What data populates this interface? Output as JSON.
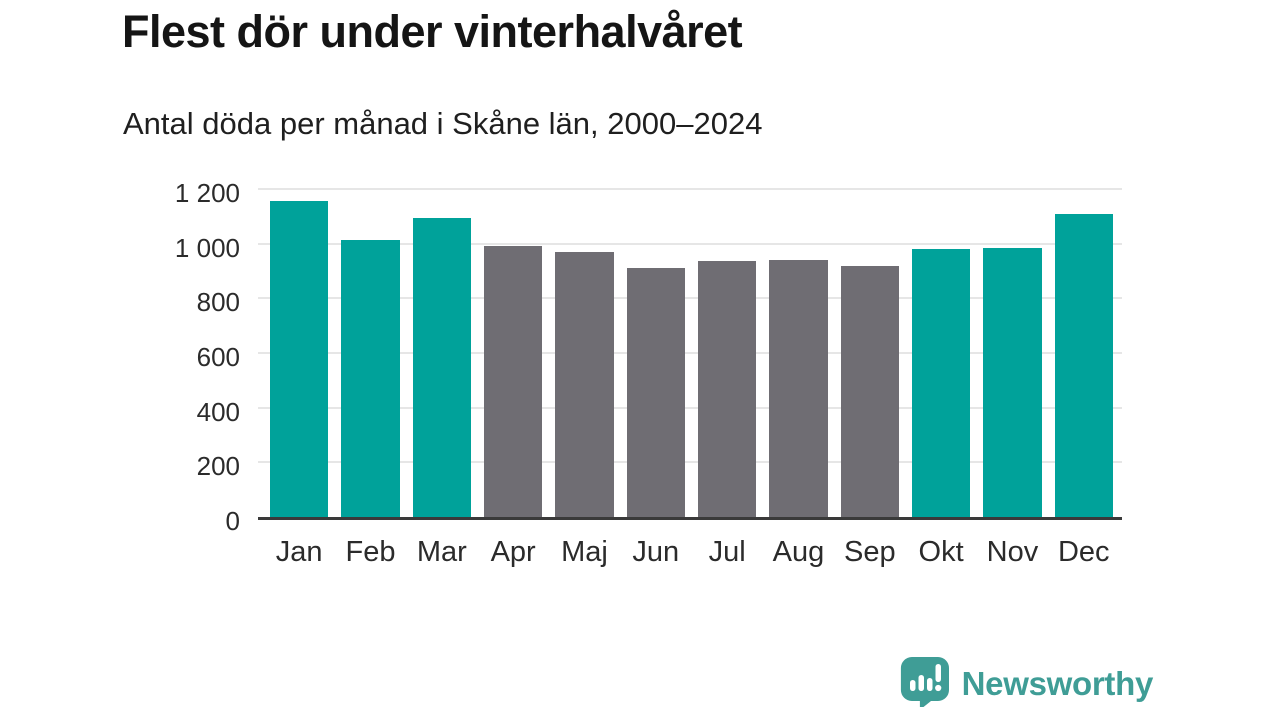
{
  "title": "Flest dör under vinterhalvåret",
  "subtitle": "Antal döda per månad i Skåne län, 2000–2024",
  "chart_data": {
    "type": "bar",
    "categories": [
      "Jan",
      "Feb",
      "Mar",
      "Apr",
      "Maj",
      "Jun",
      "Jul",
      "Aug",
      "Sep",
      "Okt",
      "Nov",
      "Dec"
    ],
    "values": [
      1155,
      1015,
      1095,
      990,
      970,
      910,
      935,
      940,
      920,
      980,
      985,
      1110
    ],
    "bar_colors": [
      "teal",
      "teal",
      "teal",
      "gray",
      "gray",
      "gray",
      "gray",
      "gray",
      "gray",
      "teal",
      "teal",
      "teal"
    ],
    "title": "Flest dör under vinterhalvåret",
    "subtitle": "Antal döda per månad i Skåne län, 2000–2024",
    "xlabel": "",
    "ylabel": "",
    "ylim": [
      0,
      1200
    ],
    "yticks": [
      0,
      200,
      400,
      600,
      800,
      1000,
      1200
    ],
    "ytick_labels": [
      "0",
      "200",
      "400",
      "600",
      "800",
      "1 000",
      "1 200"
    ],
    "grid": "horizontal",
    "legend": "none"
  },
  "colors": {
    "teal": "#00a29a",
    "gray": "#6f6d73",
    "grid": "#e6e6e6",
    "axis_line": "#3a3a3a",
    "tick_text": "#2b2b2b",
    "title_text": "#151515",
    "logo_teal": "#3f9d96"
  },
  "branding": {
    "logo_text": "Newsworthy",
    "logo_icon": "newsworthy-speech-bubble-chart-icon"
  }
}
